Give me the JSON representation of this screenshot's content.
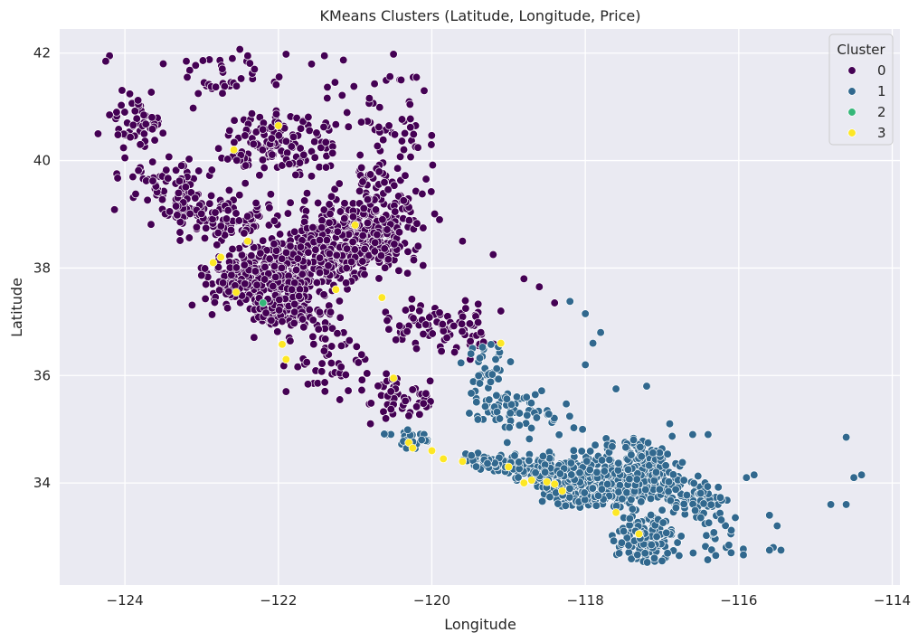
{
  "chart_data": {
    "type": "scatter",
    "title": "KMeans Clusters (Latitude, Longitude, Price)",
    "xlabel": "Longitude",
    "ylabel": "Latitude",
    "xlim": [
      -124.85,
      -113.9
    ],
    "ylim": [
      32.1,
      42.45
    ],
    "xticks": [
      -124,
      -122,
      -120,
      -118,
      -116,
      -114
    ],
    "yticks": [
      34,
      36,
      38,
      40,
      42
    ],
    "xtick_labels": [
      "−124",
      "−122",
      "−120",
      "−118",
      "−116",
      "−114"
    ],
    "ytick_labels": [
      "34",
      "36",
      "38",
      "40",
      "42"
    ],
    "grid": true,
    "legend": {
      "title": "Cluster",
      "placement": "top-right"
    },
    "series": [
      {
        "name": "0",
        "color": "#440154",
        "regions": [
          [
            -121.0,
            38.55,
            0.65,
            0.55,
            360
          ],
          [
            -121.75,
            38.0,
            0.55,
            0.5,
            260
          ],
          [
            -122.5,
            37.75,
            0.45,
            0.4,
            160
          ],
          [
            -121.9,
            37.2,
            0.4,
            0.35,
            120
          ],
          [
            -122.0,
            40.3,
            0.55,
            0.45,
            140
          ],
          [
            -122.7,
            38.9,
            0.6,
            0.45,
            110
          ],
          [
            -123.4,
            39.4,
            0.5,
            0.5,
            90
          ],
          [
            -120.7,
            39.4,
            0.5,
            0.5,
            60
          ],
          [
            -119.9,
            36.9,
            0.55,
            0.4,
            90
          ],
          [
            -120.4,
            35.6,
            0.4,
            0.3,
            50
          ],
          [
            -121.3,
            36.4,
            0.4,
            0.5,
            50
          ],
          [
            -123.9,
            40.7,
            0.35,
            0.5,
            50
          ],
          [
            -122.6,
            41.5,
            0.6,
            0.4,
            35
          ],
          [
            -120.5,
            40.4,
            0.4,
            0.6,
            40
          ],
          [
            -121.0,
            41.2,
            0.5,
            0.6,
            25
          ]
        ],
        "points": [
          [
            -124.2,
            41.95
          ],
          [
            -124.25,
            41.85
          ],
          [
            -123.5,
            41.8
          ],
          [
            -123.2,
            41.85
          ],
          [
            -122.6,
            41.9
          ],
          [
            -122.4,
            41.95
          ],
          [
            -121.9,
            41.98
          ],
          [
            -121.4,
            41.95
          ],
          [
            -120.5,
            41.98
          ],
          [
            -120.4,
            41.5
          ],
          [
            -120.2,
            41.55
          ],
          [
            -120.1,
            41.3
          ],
          [
            -124.35,
            40.5
          ],
          [
            -124.2,
            40.85
          ],
          [
            -124.0,
            40.05
          ],
          [
            -123.8,
            40.3
          ],
          [
            -122.0,
            40.7
          ],
          [
            -119.9,
            38.9
          ],
          [
            -119.6,
            38.5
          ],
          [
            -119.2,
            38.25
          ],
          [
            -118.8,
            37.8
          ],
          [
            -118.6,
            37.65
          ],
          [
            -118.4,
            37.35
          ],
          [
            -119.1,
            37.2
          ],
          [
            -119.5,
            36.3
          ],
          [
            -120.2,
            36.5
          ],
          [
            -121.9,
            35.7
          ],
          [
            -121.2,
            35.55
          ],
          [
            -120.8,
            35.1
          ],
          [
            -120.6,
            35.2
          ],
          [
            -120.3,
            35.25
          ]
        ]
      },
      {
        "name": "1",
        "color": "#31688e",
        "regions": [
          [
            -117.9,
            33.95,
            0.55,
            0.35,
            420
          ],
          [
            -117.2,
            33.0,
            0.3,
            0.35,
            140
          ],
          [
            -117.1,
            34.1,
            0.35,
            0.3,
            110
          ],
          [
            -118.6,
            34.3,
            0.4,
            0.2,
            100
          ],
          [
            -116.5,
            33.75,
            0.35,
            0.25,
            70
          ],
          [
            -117.4,
            34.6,
            0.45,
            0.3,
            60
          ],
          [
            -119.2,
            34.4,
            0.3,
            0.15,
            40
          ],
          [
            -119.1,
            35.4,
            0.35,
            0.25,
            50
          ],
          [
            -118.6,
            35.2,
            0.5,
            0.4,
            25
          ],
          [
            -119.3,
            36.1,
            0.3,
            0.4,
            35
          ],
          [
            -120.3,
            34.85,
            0.25,
            0.2,
            25
          ],
          [
            -116.3,
            33.0,
            0.35,
            0.35,
            25
          ]
        ],
        "points": [
          [
            -118.2,
            37.38
          ],
          [
            -118.0,
            37.15
          ],
          [
            -117.8,
            36.8
          ],
          [
            -117.9,
            36.6
          ],
          [
            -118.0,
            36.2
          ],
          [
            -117.6,
            35.75
          ],
          [
            -117.2,
            35.8
          ],
          [
            -116.9,
            35.1
          ],
          [
            -116.6,
            34.9
          ],
          [
            -116.4,
            34.9
          ],
          [
            -115.9,
            34.1
          ],
          [
            -115.8,
            34.15
          ],
          [
            -115.6,
            33.4
          ],
          [
            -115.5,
            33.2
          ],
          [
            -115.45,
            32.75
          ],
          [
            -115.55,
            32.8
          ],
          [
            -114.6,
            34.85
          ],
          [
            -114.4,
            34.15
          ],
          [
            -114.5,
            34.1
          ],
          [
            -114.8,
            33.6
          ],
          [
            -114.6,
            33.6
          ],
          [
            -117.1,
            32.6
          ],
          [
            -117.0,
            32.55
          ],
          [
            -116.3,
            32.65
          ],
          [
            -116.1,
            32.7
          ],
          [
            -115.6,
            32.75
          ]
        ]
      },
      {
        "name": "2",
        "color": "#35b779",
        "regions": [],
        "points": [
          [
            -122.2,
            37.35
          ]
        ]
      },
      {
        "name": "3",
        "color": "#fde725",
        "regions": [],
        "points": [
          [
            -122.58,
            40.2
          ],
          [
            -122.75,
            38.2
          ],
          [
            -122.85,
            38.1
          ],
          [
            -122.4,
            38.5
          ],
          [
            -122.55,
            37.55
          ],
          [
            -121.95,
            36.58
          ],
          [
            -121.9,
            36.3
          ],
          [
            -121.25,
            37.6
          ],
          [
            -120.5,
            35.95
          ],
          [
            -120.65,
            37.45
          ],
          [
            -120.3,
            34.75
          ],
          [
            -120.25,
            34.65
          ],
          [
            -120.0,
            34.6
          ],
          [
            -119.85,
            34.45
          ],
          [
            -119.6,
            34.4
          ],
          [
            -119.0,
            34.3
          ],
          [
            -118.7,
            34.05
          ],
          [
            -118.5,
            34.02
          ],
          [
            -118.4,
            33.98
          ],
          [
            -118.3,
            33.85
          ],
          [
            -117.6,
            33.45
          ],
          [
            -117.3,
            33.05
          ],
          [
            -121.0,
            38.8
          ],
          [
            -119.1,
            36.6
          ],
          [
            -122.0,
            40.65
          ],
          [
            -118.8,
            34.0
          ]
        ]
      }
    ]
  }
}
